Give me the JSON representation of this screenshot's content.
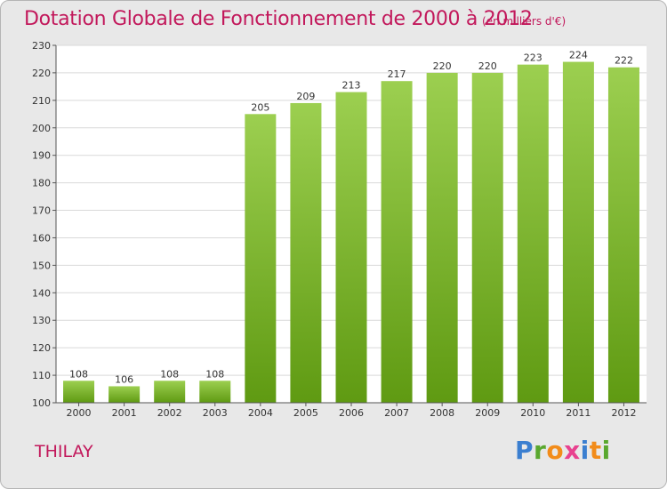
{
  "header": {
    "title": "Dotation Globale de Fonctionnement de 2000 à 2012",
    "subtitle": "(en milliers d'€)"
  },
  "footer": {
    "place": "THILAY",
    "brand": [
      "P",
      "r",
      "o",
      "x",
      "i",
      "t",
      "i"
    ],
    "brand_colors": [
      "#3b7fd0",
      "#5aa82e",
      "#f28c1a",
      "#e8418f",
      "#3b7fd0",
      "#f28c1a",
      "#5aa82e"
    ]
  },
  "colors": {
    "title": "#c2185b",
    "bar_top": "#9ccf50",
    "bar_bottom": "#5f9a12",
    "plot_bg": "#ffffff",
    "grid": "#d9d9d9"
  },
  "chart_data": {
    "type": "bar",
    "title": "Dotation Globale de Fonctionnement de 2000 à 2012",
    "subtitle": "(en milliers d'€)",
    "categories": [
      "2000",
      "2001",
      "2002",
      "2003",
      "2004",
      "2005",
      "2006",
      "2007",
      "2008",
      "2009",
      "2010",
      "2011",
      "2012"
    ],
    "values": [
      108,
      106,
      108,
      108,
      205,
      209,
      213,
      217,
      220,
      220,
      223,
      224,
      222
    ],
    "ylim": [
      100,
      230
    ],
    "yticks": [
      100,
      110,
      120,
      130,
      140,
      150,
      160,
      170,
      180,
      190,
      200,
      210,
      220,
      230
    ],
    "grid": true,
    "xlabel": "",
    "ylabel": ""
  }
}
